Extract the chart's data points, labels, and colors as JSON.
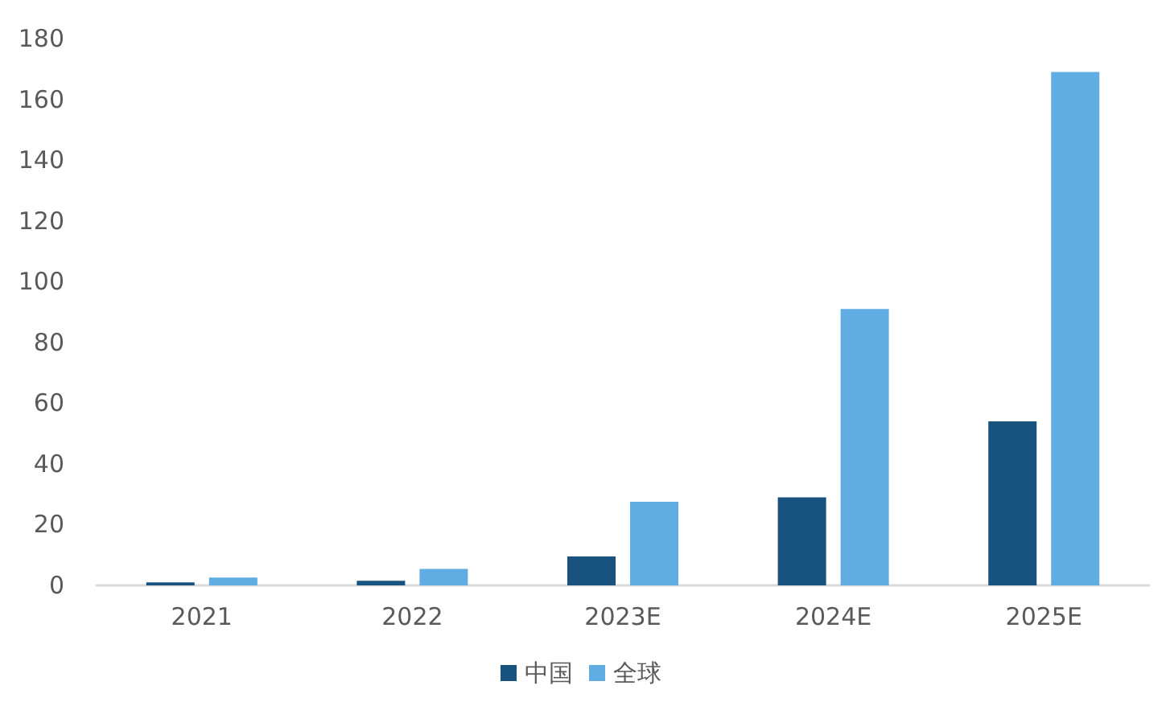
{
  "chart_data": {
    "type": "bar",
    "categories": [
      "2021",
      "2022",
      "2023E",
      "2024E",
      "2025E"
    ],
    "series": [
      {
        "name": "中国",
        "color": "#185380",
        "values": [
          1,
          1.5,
          9.5,
          29,
          54
        ]
      },
      {
        "name": "全球",
        "color": "#5fade3",
        "values": [
          2.6,
          5.4,
          27.5,
          91,
          169
        ]
      }
    ],
    "ylim": [
      0,
      180
    ],
    "yticks": [
      0,
      20,
      40,
      60,
      80,
      100,
      120,
      140,
      160,
      180
    ],
    "grid": false,
    "legend": "bottom"
  }
}
